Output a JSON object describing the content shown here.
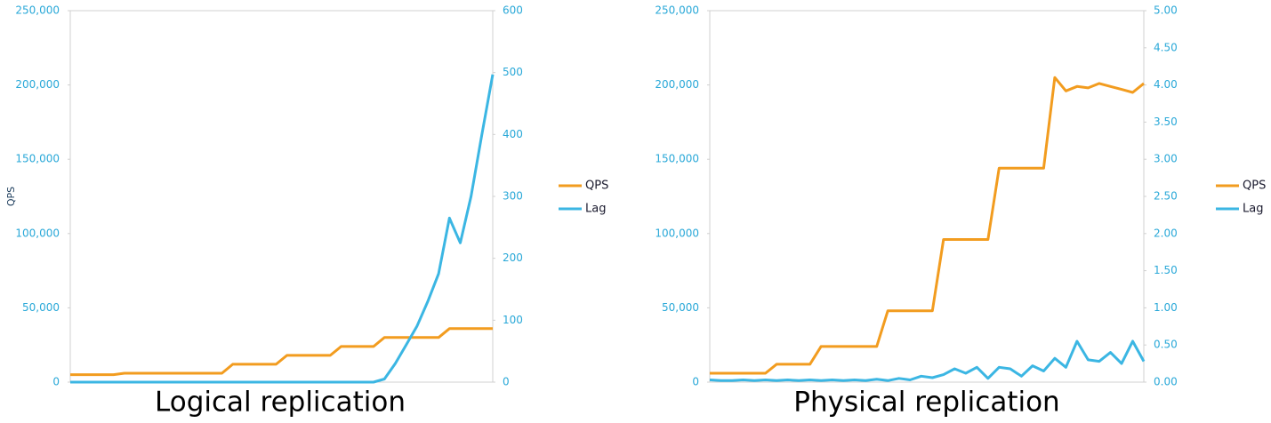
{
  "chart_data": [
    {
      "type": "line",
      "title": "Logical replication",
      "ylabel": "QPS",
      "categories": [
        null,
        null,
        null,
        null,
        null,
        null,
        null,
        null,
        null,
        null,
        null,
        null,
        null,
        null,
        null,
        null,
        null,
        null,
        null,
        null,
        null,
        null,
        null,
        null,
        null,
        null,
        null,
        null,
        null,
        null,
        null,
        null,
        null,
        null,
        null,
        null,
        null,
        null,
        null,
        null
      ],
      "ylim": [
        0,
        250000
      ],
      "yticks": [
        0,
        {
          "value": 50000,
          "label": "50,000"
        },
        {
          "value": 100000,
          "label": "100,000"
        },
        {
          "value": 150000,
          "label": "150,000"
        },
        {
          "value": 200000,
          "label": "200,000"
        },
        {
          "value": 250000,
          "label": "250,000"
        }
      ],
      "y2lim": [
        0,
        600
      ],
      "y2ticks": [
        0,
        100,
        200,
        300,
        400,
        500,
        600
      ],
      "series": [
        {
          "name": "QPS",
          "color": "#f29c1f",
          "values": [
            5000,
            5000,
            5000,
            5000,
            5000,
            6000,
            6000,
            6000,
            6000,
            6000,
            6000,
            6000,
            6000,
            6000,
            6000,
            12000,
            12000,
            12000,
            12000,
            12000,
            18000,
            18000,
            18000,
            18000,
            18000,
            24000,
            24000,
            24000,
            24000,
            30000,
            30000,
            30000,
            30000,
            30000,
            30000,
            36000,
            36000,
            36000,
            36000,
            36000
          ]
        },
        {
          "name": "Lag",
          "color": "#3bb6e3",
          "axis": "y2",
          "values": [
            0,
            0,
            0,
            0,
            0,
            0,
            0,
            0,
            0,
            0,
            0,
            0,
            0,
            0,
            0,
            0,
            0,
            0,
            0,
            0,
            0,
            0,
            0,
            0,
            0,
            0,
            0,
            0,
            0,
            5,
            30,
            60,
            90,
            130,
            175,
            265,
            225,
            300,
            400,
            497
          ]
        }
      ]
    },
    {
      "type": "line",
      "title": "Physical replication",
      "categories": [
        null,
        null,
        null,
        null,
        null,
        null,
        null,
        null,
        null,
        null,
        null,
        null,
        null,
        null,
        null,
        null,
        null,
        null,
        null,
        null,
        null,
        null,
        null,
        null,
        null,
        null,
        null,
        null,
        null,
        null,
        null,
        null,
        null,
        null,
        null,
        null,
        null,
        null,
        null,
        null
      ],
      "ylim": [
        0,
        250000
      ],
      "yticks": [
        0,
        {
          "value": 50000,
          "label": "50,000"
        },
        {
          "value": 100000,
          "label": "100,000"
        },
        {
          "value": 150000,
          "label": "150,000"
        },
        {
          "value": 200000,
          "label": "200,000"
        },
        {
          "value": 250000,
          "label": "250,000"
        }
      ],
      "y2lim": [
        0,
        5
      ],
      "y2ticks": [
        {
          "value": 0,
          "label": "0.00"
        },
        {
          "value": 0.5,
          "label": "0.50"
        },
        {
          "value": 1,
          "label": "1.00"
        },
        {
          "value": 1.5,
          "label": "1.50"
        },
        {
          "value": 2,
          "label": "2.00"
        },
        {
          "value": 2.5,
          "label": "2.50"
        },
        {
          "value": 3,
          "label": "3.00"
        },
        {
          "value": 3.5,
          "label": "3.50"
        },
        {
          "value": 4,
          "label": "4.00"
        },
        {
          "value": 4.5,
          "label": "4.50"
        },
        {
          "value": 5,
          "label": "5.00"
        }
      ],
      "series": [
        {
          "name": "QPS",
          "color": "#f29c1f",
          "values": [
            6000,
            6000,
            6000,
            6000,
            6000,
            6000,
            12000,
            12000,
            12000,
            12000,
            24000,
            24000,
            24000,
            24000,
            24000,
            24000,
            48000,
            48000,
            48000,
            48000,
            48000,
            96000,
            96000,
            96000,
            96000,
            96000,
            144000,
            144000,
            144000,
            144000,
            144000,
            205000,
            196000,
            199000,
            198000,
            201000,
            199000,
            197000,
            195000,
            201000
          ]
        },
        {
          "name": "Lag",
          "color": "#3bb6e3",
          "axis": "y2",
          "values": [
            0.03,
            0.02,
            0.02,
            0.03,
            0.02,
            0.03,
            0.02,
            0.03,
            0.02,
            0.03,
            0.02,
            0.03,
            0.02,
            0.03,
            0.02,
            0.04,
            0.02,
            0.05,
            0.03,
            0.08,
            0.06,
            0.1,
            0.18,
            0.12,
            0.2,
            0.05,
            0.2,
            0.18,
            0.08,
            0.22,
            0.15,
            0.32,
            0.2,
            0.55,
            0.3,
            0.28,
            0.4,
            0.25,
            0.55,
            0.28
          ]
        }
      ]
    }
  ]
}
